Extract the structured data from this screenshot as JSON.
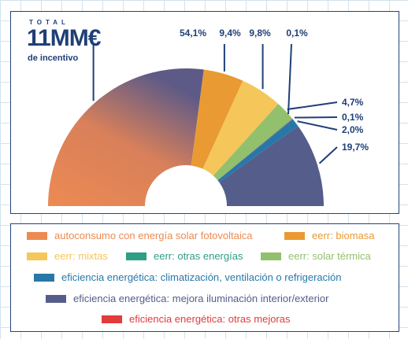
{
  "header": {
    "total_label": "TOTAL",
    "total_value": "11MM€",
    "total_sub": "de incentivo"
  },
  "chart_data": {
    "type": "pie",
    "subtype": "semi-donut",
    "title": "",
    "categories": [
      "autoconsumo con energía solar fotovoltaica",
      "eerr: biomasa",
      "eerr: mixtas",
      "eerr: solar térmica",
      "eerr: otras energías",
      "eficiencia energética: otras mejoras",
      "eficiencia energética: climatización, ventilación o refrigeración",
      "eficiencia energética: mejora iluminación interior/exterior"
    ],
    "values": [
      54.1,
      9.4,
      9.8,
      4.7,
      0.1,
      0.1,
      2.0,
      19.7
    ],
    "labels": [
      "54,1%",
      "9,4%",
      "9,8%",
      "4,7%",
      "0,1%",
      "0,1%",
      "2,0%",
      "19,7%"
    ],
    "colors": [
      "#ec8a52",
      "#e99a33",
      "#f5c659",
      "#93c06d",
      "#2e9e87",
      "#e23b3a",
      "#2778a8",
      "#555d8b"
    ],
    "label_color": "#1f3f77"
  },
  "legend": [
    {
      "label": "autoconsumo con energía solar fotovoltaica",
      "color": "#ec8a52"
    },
    {
      "label": "eerr: biomasa",
      "color": "#e99a33"
    },
    {
      "label": "eerr: mixtas",
      "color": "#f5c659"
    },
    {
      "label": "eerr: otras energías",
      "color": "#2e9e87"
    },
    {
      "label": "eerr: solar térmica",
      "color": "#93c06d"
    },
    {
      "label": "eficiencia energética: climatización, ventilación o refrigeración",
      "color": "#2778a8"
    },
    {
      "label": "eficiencia energética: mejora iluminación interior/exterior",
      "color": "#555d8b"
    },
    {
      "label": "eficiencia energética: otras mejoras",
      "color": "#e23b3a"
    }
  ]
}
